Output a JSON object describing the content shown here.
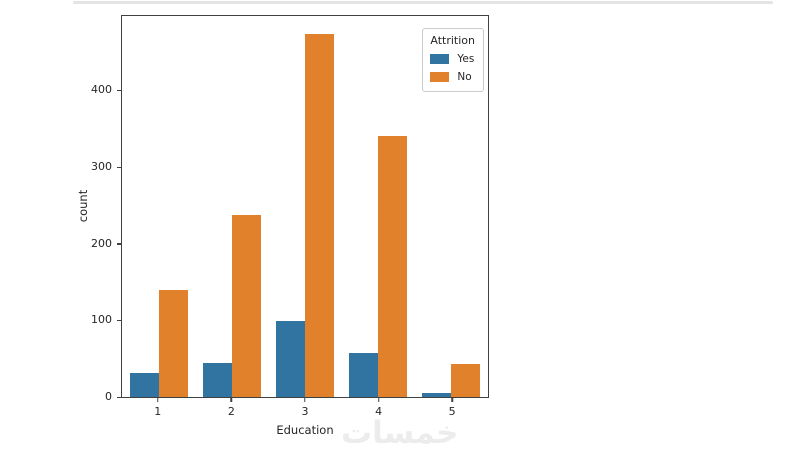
{
  "page": {
    "background": "#ffffff",
    "top_divider_color": "#e4e4e4"
  },
  "chart_data": {
    "type": "bar",
    "title": "",
    "xlabel": "Education",
    "ylabel": "count",
    "categories": [
      "1",
      "2",
      "3",
      "4",
      "5"
    ],
    "series": [
      {
        "name": "Yes",
        "color": "#3274a1",
        "values": [
          31,
          44,
          99,
          58,
          5
        ]
      },
      {
        "name": "No",
        "color": "#e1812c",
        "values": [
          139,
          238,
          473,
          340,
          43
        ]
      }
    ],
    "legend": {
      "title": "Attrition",
      "position": "upper-right",
      "entries": [
        "Yes",
        "No"
      ]
    },
    "ylim": [
      0,
      497
    ],
    "yticks": [
      0,
      100,
      200,
      300,
      400
    ],
    "grid": false,
    "bar_group_width": 0.8,
    "spine_color": "#404040"
  },
  "watermark": {
    "text": "خمسات",
    "color": "#ececec"
  }
}
